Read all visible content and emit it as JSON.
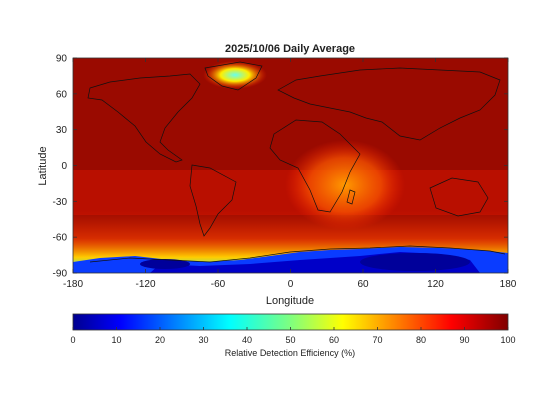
{
  "chart_data": {
    "type": "heatmap",
    "title": "2025/10/06 Daily Average",
    "xlabel": "Longitude",
    "ylabel": "Latitude",
    "xlim": [
      -180,
      180
    ],
    "ylim": [
      -90,
      90
    ],
    "x_ticks": [
      -180,
      -120,
      -60,
      0,
      60,
      120,
      180
    ],
    "y_ticks": [
      90,
      60,
      30,
      0,
      -30,
      -60,
      -90
    ],
    "grid": false,
    "colorbar": {
      "label": "Relative Detection Efficiency (%)",
      "range": [
        0,
        100
      ],
      "ticks": [
        0,
        10,
        20,
        30,
        40,
        50,
        60,
        70,
        80,
        90,
        100
      ],
      "colormap": "jet",
      "placement": "bottom"
    },
    "background_value": 95,
    "features": [
      {
        "region": "Greenland",
        "lon": -40,
        "lat": 72,
        "value": 45
      },
      {
        "region": "Antarctica (east)",
        "lon": 100,
        "lat": -82,
        "value": 8
      },
      {
        "region": "Antarctica (west)",
        "lon": -100,
        "lat": -82,
        "value": 10
      },
      {
        "region": "Southern Ocean",
        "lon": 0,
        "lat": -65,
        "value": 72
      },
      {
        "region": "Southern Africa / Indian Ocean",
        "lon": 45,
        "lat": -10,
        "value": 80
      }
    ]
  },
  "colors": {
    "low": "#00008f",
    "mid": "#7fff7f",
    "high": "#800000",
    "background": "#9a0a00"
  }
}
